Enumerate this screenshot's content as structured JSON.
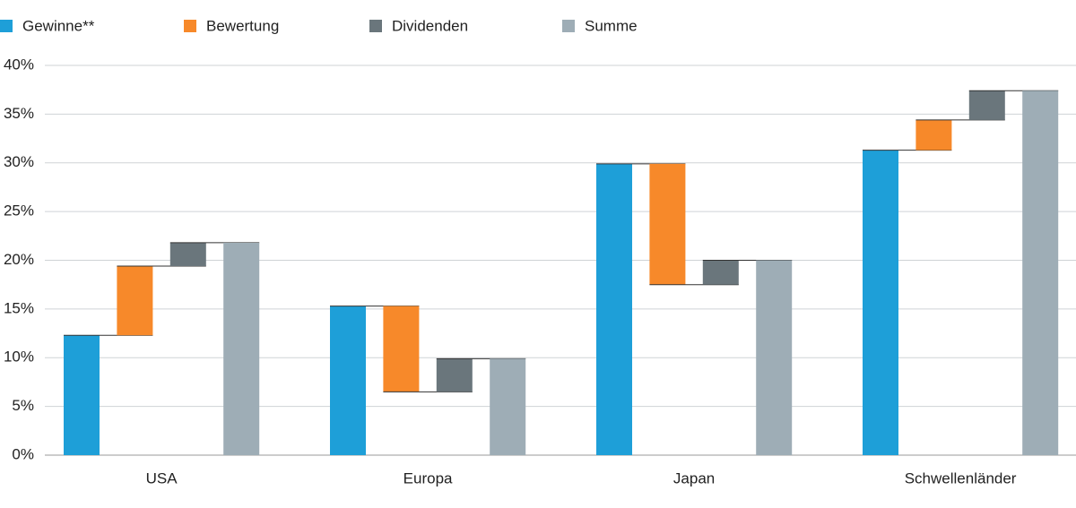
{
  "chart_data": {
    "type": "waterfall",
    "categories": [
      "USA",
      "Europa",
      "Japan",
      "Schwellenländer"
    ],
    "series": [
      {
        "name": "Gewinne**",
        "color": "#1e9fd8",
        "values": [
          12.3,
          15.3,
          29.9,
          31.3
        ]
      },
      {
        "name": "Bewertung",
        "color": "#f7892a",
        "values": [
          7.1,
          -8.8,
          -12.4,
          3.1
        ]
      },
      {
        "name": "Dividenden",
        "color": "#6a767c",
        "values": [
          2.4,
          3.4,
          2.5,
          3.0
        ]
      },
      {
        "name": "Summe",
        "color": "#9eadb6",
        "values": [
          21.8,
          9.9,
          20.0,
          37.4
        ]
      }
    ],
    "ylim": [
      0,
      40
    ],
    "yticks": [
      {
        "value": 0,
        "label": "0%"
      },
      {
        "value": 5,
        "label": "5%"
      },
      {
        "value": 10,
        "label": "10%"
      },
      {
        "value": 15,
        "label": "15%"
      },
      {
        "value": 20,
        "label": "20%"
      },
      {
        "value": 25,
        "label": "25%"
      },
      {
        "value": 30,
        "label": "30%"
      },
      {
        "value": 35,
        "label": "35%"
      },
      {
        "value": 40,
        "label": "40%"
      }
    ],
    "grid": true
  }
}
